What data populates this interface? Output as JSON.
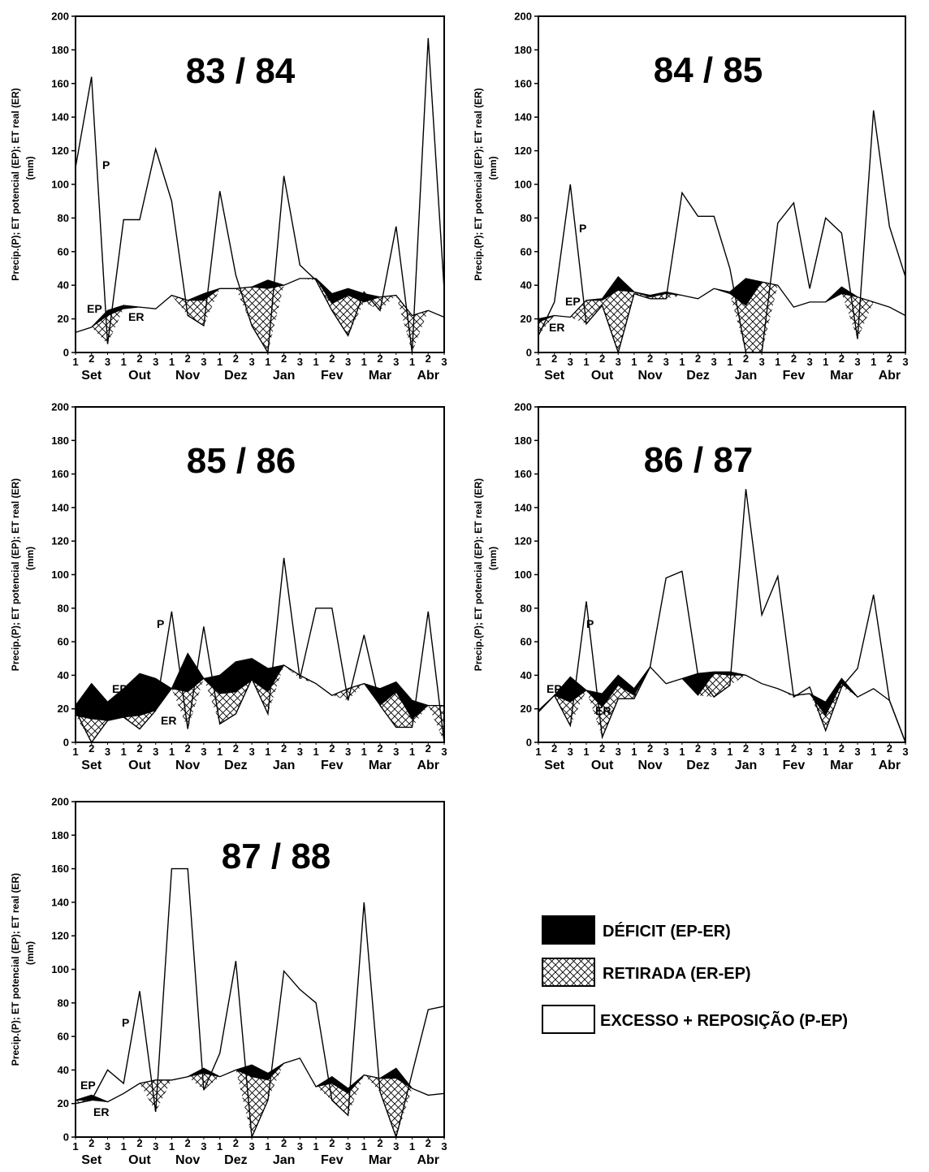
{
  "legend": {
    "items": [
      {
        "label": "DÉFICIT (EP-ER)",
        "fill": "black"
      },
      {
        "label": "RETIRADA (ER-EP)",
        "fill": "hatch"
      },
      {
        "label": "EXCESSO + REPOSIÇÃO (P-EP)",
        "fill": "white"
      }
    ]
  },
  "chart_data": [
    {
      "type": "line",
      "title": "83 / 84",
      "ylabel": "Precip.(P); ET potencial (EP); ET real (ER) (mm)",
      "ylim": [
        0,
        200
      ],
      "yticks": [
        0,
        20,
        40,
        60,
        80,
        100,
        120,
        140,
        160,
        180,
        200
      ],
      "months": [
        "Set",
        "Out",
        "Nov",
        "Dez",
        "Jan",
        "Fev",
        "Mar",
        "Abr"
      ],
      "decendios": [
        "1",
        "2",
        "3"
      ],
      "annotations": [
        "P",
        "EP",
        "ER"
      ],
      "series": [
        {
          "name": "P",
          "values": [
            110,
            164,
            5,
            79,
            79,
            121,
            90,
            22,
            16,
            96,
            46,
            16,
            0,
            105,
            52,
            43,
            25,
            10,
            36,
            25,
            75,
            0,
            187,
            37
          ]
        },
        {
          "name": "EP",
          "values": [
            12,
            15,
            25,
            28,
            27,
            26,
            34,
            31,
            35,
            38,
            38,
            39,
            43,
            40,
            44,
            44,
            35,
            38,
            35,
            33,
            34,
            22,
            25,
            21
          ]
        },
        {
          "name": "ER",
          "values": [
            12,
            15,
            22,
            26,
            27,
            26,
            34,
            31,
            31,
            38,
            38,
            39,
            38,
            40,
            44,
            44,
            29,
            34,
            30,
            33,
            34,
            22,
            25,
            21
          ]
        }
      ]
    },
    {
      "type": "line",
      "title": "84 / 85",
      "ylabel": "Precip.(P); ET potencial (EP); ET real (ER) (mm)",
      "ylim": [
        0,
        200
      ],
      "yticks": [
        0,
        20,
        40,
        60,
        80,
        100,
        120,
        140,
        160,
        180,
        200
      ],
      "months": [
        "Set",
        "Out",
        "Nov",
        "Dez",
        "Jan",
        "Fev",
        "Mar",
        "Abr"
      ],
      "decendios": [
        "1",
        "2",
        "3"
      ],
      "annotations": [
        "P",
        "EP",
        "ER"
      ],
      "series": [
        {
          "name": "P",
          "values": [
            10,
            30,
            100,
            17,
            28,
            0,
            35,
            32,
            32,
            95,
            81,
            81,
            50,
            0,
            0,
            77,
            89,
            38,
            80,
            71,
            8,
            144,
            75,
            45
          ]
        },
        {
          "name": "EP",
          "values": [
            20,
            22,
            21,
            31,
            32,
            45,
            36,
            34,
            36,
            34,
            32,
            38,
            36,
            44,
            42,
            40,
            27,
            30,
            30,
            39,
            33,
            30,
            27,
            22
          ]
        },
        {
          "name": "ER",
          "values": [
            18,
            22,
            21,
            31,
            31,
            37,
            36,
            33,
            35,
            34,
            32,
            38,
            35,
            28,
            42,
            40,
            27,
            30,
            30,
            35,
            33,
            30,
            27,
            22
          ]
        }
      ]
    },
    {
      "type": "line",
      "title": "85 / 86",
      "ylabel": "Precip.(P); ET potencial (EP); ET real (ER) (mm)",
      "ylim": [
        0,
        200
      ],
      "yticks": [
        0,
        20,
        40,
        60,
        80,
        100,
        120,
        140,
        160,
        180,
        200
      ],
      "months": [
        "Set",
        "Out",
        "Nov",
        "Dez",
        "Jan",
        "Fev",
        "Mar",
        "Abr"
      ],
      "decendios": [
        "1",
        "2",
        "3"
      ],
      "annotations": [
        "P",
        "EP",
        "ER"
      ],
      "series": [
        {
          "name": "P",
          "values": [
            19,
            0,
            13,
            15,
            8,
            19,
            78,
            8,
            69,
            11,
            17,
            38,
            17,
            110,
            38,
            80,
            80,
            25,
            64,
            22,
            9,
            9,
            78,
            0
          ]
        },
        {
          "name": "EP",
          "values": [
            22,
            35,
            24,
            32,
            41,
            38,
            32,
            53,
            38,
            40,
            48,
            50,
            44,
            46,
            40,
            35,
            28,
            32,
            35,
            32,
            36,
            25,
            22,
            22
          ]
        },
        {
          "name": "ER",
          "values": [
            16,
            14,
            13,
            15,
            16,
            19,
            32,
            30,
            38,
            29,
            30,
            37,
            30,
            46,
            40,
            35,
            28,
            32,
            35,
            22,
            30,
            14,
            22,
            22
          ]
        }
      ]
    },
    {
      "type": "line",
      "title": "86 / 87",
      "ylabel": "Precip.(P); ET potencial (EP); ET real (ER) (mm)",
      "ylim": [
        0,
        200
      ],
      "yticks": [
        0,
        20,
        40,
        60,
        80,
        100,
        120,
        140,
        160,
        180,
        200
      ],
      "months": [
        "Set",
        "Out",
        "Nov",
        "Dez",
        "Jan",
        "Fev",
        "Mar",
        "Abr"
      ],
      "decendios": [
        "1",
        "2",
        "3"
      ],
      "annotations": [
        "P",
        "EP",
        "ER"
      ],
      "series": [
        {
          "name": "P",
          "values": [
            18,
            28,
            10,
            84,
            3,
            26,
            26,
            45,
            98,
            102,
            40,
            27,
            34,
            151,
            76,
            99,
            27,
            33,
            7,
            33,
            44,
            88,
            25,
            0
          ]
        },
        {
          "name": "EP",
          "values": [
            19,
            28,
            39,
            31,
            29,
            40,
            32,
            45,
            35,
            38,
            41,
            42,
            42,
            40,
            35,
            32,
            28,
            29,
            24,
            38,
            27,
            32,
            25,
            0
          ]
        },
        {
          "name": "ER",
          "values": [
            19,
            28,
            24,
            31,
            21,
            34,
            28,
            45,
            35,
            38,
            28,
            41,
            40,
            40,
            35,
            32,
            28,
            29,
            16,
            35,
            27,
            32,
            25,
            0
          ]
        }
      ]
    },
    {
      "type": "line",
      "title": "87 / 88",
      "ylabel": "Precip.(P); ET potencial (EP); ET real (ER) (mm)",
      "ylim": [
        0,
        200
      ],
      "yticks": [
        0,
        20,
        40,
        60,
        80,
        100,
        120,
        140,
        160,
        180,
        200
      ],
      "months": [
        "Set",
        "Out",
        "Nov",
        "Dez",
        "Jan",
        "Fev",
        "Mar",
        "Abr"
      ],
      "decendios": [
        "1",
        "2",
        "3"
      ],
      "annotations": [
        "P",
        "EP",
        "ER"
      ],
      "series": [
        {
          "name": "P",
          "values": [
            20,
            22,
            40,
            32,
            87,
            15,
            160,
            160,
            28,
            50,
            105,
            0,
            22,
            99,
            88,
            80,
            22,
            13,
            140,
            27,
            0,
            38,
            76,
            78
          ]
        },
        {
          "name": "EP",
          "values": [
            22,
            25,
            21,
            26,
            32,
            34,
            34,
            36,
            41,
            36,
            40,
            43,
            38,
            44,
            47,
            30,
            36,
            29,
            37,
            35,
            41,
            29,
            25,
            26
          ]
        },
        {
          "name": "ER",
          "values": [
            22,
            22,
            21,
            26,
            32,
            34,
            34,
            36,
            38,
            36,
            40,
            36,
            34,
            44,
            47,
            30,
            32,
            26,
            37,
            35,
            35,
            29,
            25,
            26
          ]
        }
      ]
    }
  ]
}
